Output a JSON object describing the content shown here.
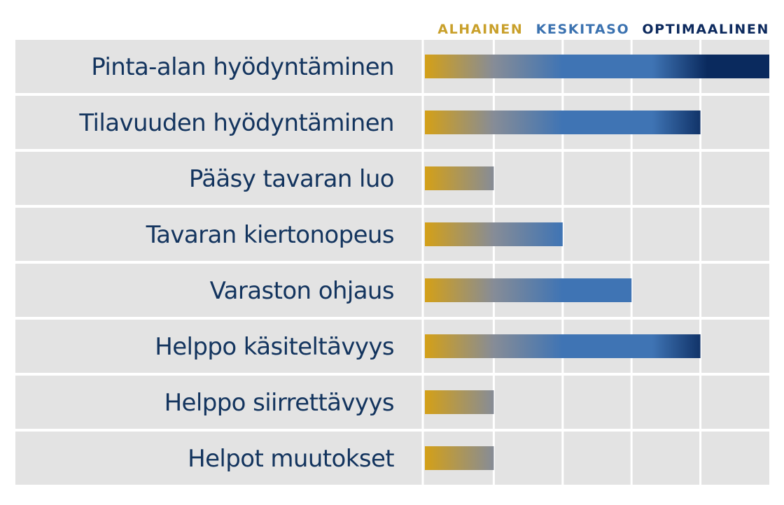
{
  "legend": [
    {
      "label": "ALHAINEN",
      "color": "#C9A02B"
    },
    {
      "label": "KESKITASO",
      "color": "#3B72B0"
    },
    {
      "label": "OPTIMAALINEN",
      "color": "#0D2A5E"
    }
  ],
  "colors": {
    "row_background": "#E3E3E3",
    "label_text": "#13345E",
    "gradient_start": "#D4A017",
    "gradient_mid_gray": "#868C97",
    "gradient_blue": "#3F74B4",
    "gradient_end": "#0A2A5E"
  },
  "chart_data": {
    "type": "bar",
    "orientation": "horizontal",
    "categories": [
      "Pinta-alan hyödyntäminen",
      "Tilavuuden hyödyntäminen",
      "Pääsy tavaran luo",
      "Tavaran kiertonopeus",
      "Varaston ohjaus",
      "Helppo käsiteltävyys",
      "Helppo siirrettävyys",
      "Helpot muutokset"
    ],
    "values": [
      5,
      4,
      1,
      2,
      3,
      4,
      1,
      1
    ],
    "xlim": [
      0,
      5
    ],
    "grid": true,
    "legend_position": "top-right"
  }
}
